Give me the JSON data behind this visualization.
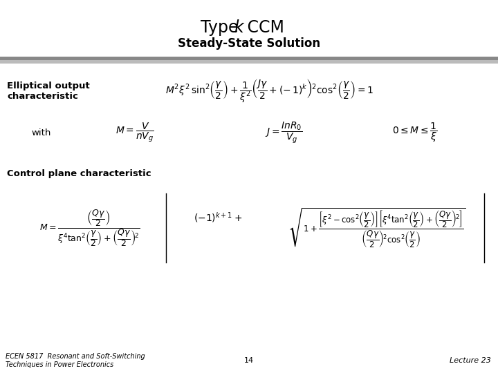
{
  "title_line1": "Type ",
  "title_k": "k",
  "title_line1_rest": " CCM",
  "subtitle": "Steady-State Solution",
  "label_elliptical": "Elliptical output\ncharacteristic",
  "label_with": "with",
  "label_control": "Control plane characteristic",
  "footer_left1": "ECEN 5817  Resonant and Soft-Switching",
  "footer_left2": "Techniques in Power Electronics",
  "footer_center": "14",
  "footer_right": "Lecture 23",
  "bg_color": "#ffffff",
  "bar1_color": "#888888",
  "bar2_color": "#bbbbbb",
  "text_color": "#000000",
  "title_fontsize": 17,
  "subtitle_fontsize": 12,
  "label_fontsize": 9.5,
  "eq_fontsize": 10,
  "footer_fontsize": 7
}
